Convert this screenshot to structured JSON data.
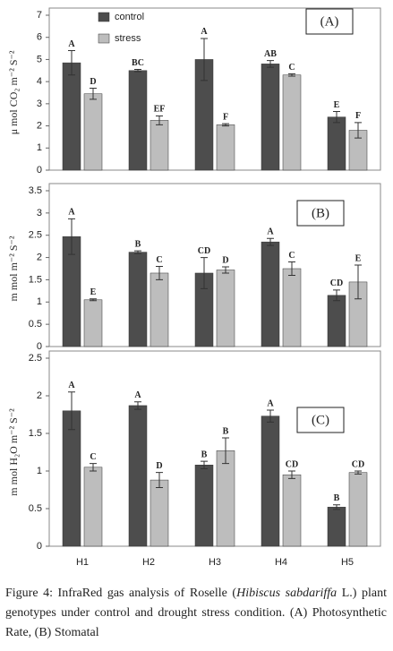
{
  "chart_data": [
    {
      "type": "bar",
      "panel_label": "(A)",
      "y_label": "μ mol CO₂ m⁻² S⁻²",
      "categories": [
        null,
        null,
        null,
        null,
        null
      ],
      "series": [
        {
          "name": "control",
          "color": "#4d4d4d",
          "values": [
            4.85,
            4.5,
            5.0,
            4.8,
            2.4
          ],
          "errors": [
            0.55,
            0.05,
            0.95,
            0.15,
            0.25
          ],
          "letters": [
            "A",
            "BC",
            "A",
            "AB",
            "E"
          ]
        },
        {
          "name": "stress",
          "color": "#bdbdbd",
          "values": [
            3.45,
            2.25,
            2.05,
            4.3,
            1.8
          ],
          "errors": [
            0.25,
            0.2,
            0.05,
            0.05,
            0.35
          ],
          "letters": [
            "D",
            "EF",
            "F",
            "C",
            "F"
          ]
        }
      ],
      "ylim": [
        0,
        7
      ],
      "yticks": [
        0,
        1,
        2,
        3,
        4,
        5,
        6,
        7
      ],
      "legend": true
    },
    {
      "type": "bar",
      "panel_label": "(B)",
      "y_label": "m mol m⁻² S⁻²",
      "categories": [
        null,
        null,
        null,
        null,
        null
      ],
      "series": [
        {
          "name": "control",
          "color": "#4d4d4d",
          "values": [
            2.47,
            2.12,
            1.65,
            2.35,
            1.15
          ],
          "errors": [
            0.4,
            0.03,
            0.35,
            0.08,
            0.12
          ],
          "letters": [
            "A",
            "B",
            "CD",
            "A",
            "CD"
          ]
        },
        {
          "name": "stress",
          "color": "#bdbdbd",
          "values": [
            1.05,
            1.65,
            1.72,
            1.75,
            1.45
          ],
          "errors": [
            0.02,
            0.15,
            0.07,
            0.15,
            0.38
          ],
          "letters": [
            "E",
            "C",
            "D",
            "C",
            "E"
          ]
        }
      ],
      "ylim": [
        0,
        3.5
      ],
      "yticks": [
        0,
        0.5,
        1,
        1.5,
        2,
        2.5,
        3,
        3.5
      ],
      "legend": false
    },
    {
      "type": "bar",
      "panel_label": "(C)",
      "y_label": "m mol H₂O m⁻² S⁻²",
      "categories": [
        "H1",
        "H2",
        "H3",
        "H4",
        "H5"
      ],
      "series": [
        {
          "name": "control",
          "color": "#4d4d4d",
          "values": [
            1.8,
            1.87,
            1.08,
            1.73,
            0.52
          ],
          "errors": [
            0.25,
            0.05,
            0.05,
            0.08,
            0.03
          ],
          "letters": [
            "A",
            "A",
            "B",
            "A",
            "B"
          ]
        },
        {
          "name": "stress",
          "color": "#bdbdbd",
          "values": [
            1.05,
            0.88,
            1.27,
            0.95,
            0.98
          ],
          "errors": [
            0.05,
            0.1,
            0.17,
            0.05,
            0.02
          ],
          "letters": [
            "C",
            "D",
            "B",
            "CD",
            "CD"
          ]
        }
      ],
      "ylim": [
        0,
        2.5
      ],
      "yticks": [
        0,
        0.5,
        1,
        1.5,
        2,
        2.5
      ],
      "legend": false
    }
  ],
  "caption": {
    "before": "Figure 4: InfraRed gas analysis of Roselle (",
    "italic": "Hibiscus sabdariffa",
    "after": " L.) plant genotypes  under control and drought stress condition.  (A) Photosynthetic Rate, (B) Stomatal"
  }
}
